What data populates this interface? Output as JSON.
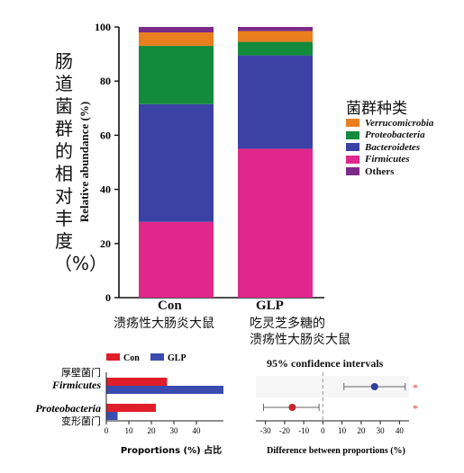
{
  "chart_data": [
    {
      "type": "bar",
      "stacked": true,
      "vertical_title": "肠道菌群的相对丰度（%）",
      "ylabel": "Relative abundance (%)",
      "ylim": [
        0,
        100
      ],
      "yticks": [
        "0",
        "20",
        "40",
        "60",
        "80",
        "100"
      ],
      "categories": [
        "Con",
        "GLP"
      ],
      "category_subtitles": [
        "溃疡性大肠炎大鼠",
        "吃灵芝多糖的\n溃疡性大肠炎大鼠"
      ],
      "legend_title": "菌群种类",
      "legend_position": "right",
      "series": [
        {
          "name": "Firmicutes",
          "color": "#e0288c",
          "values": [
            28,
            55
          ]
        },
        {
          "name": "Bacteroidetes",
          "color": "#3c41a6",
          "values": [
            43.5,
            34.5
          ]
        },
        {
          "name": "Proteobacteria",
          "color": "#138a3c",
          "values": [
            21.5,
            5
          ]
        },
        {
          "name": "Verrucomicrobia",
          "color": "#ea7f20",
          "values": [
            5,
            4
          ]
        },
        {
          "name": "Others",
          "color": "#7b2a89",
          "values": [
            2,
            1.5
          ]
        }
      ],
      "legend_order": [
        "Verrucomicrobia",
        "Proteobacteria",
        "Bacteroidetes",
        "Firmicutes",
        "Others"
      ]
    },
    {
      "type": "bar",
      "orientation": "horizontal",
      "categories": [
        "Firmicutes",
        "Proteobacteria"
      ],
      "category_notes": [
        "厚壁菌门",
        "变形菌门"
      ],
      "series": [
        {
          "name": "Con",
          "color": "#e01e2a",
          "values": [
            27,
            22
          ]
        },
        {
          "name": "GLP",
          "color": "#3a4cb0",
          "values": [
            52,
            5
          ]
        }
      ],
      "xlabel": "Proportions (%) 占比",
      "xticks": [
        "0",
        "10",
        "20",
        "30",
        "40"
      ],
      "xlim": [
        0,
        52
      ],
      "legend_position": "top"
    },
    {
      "type": "scatter",
      "title": "95% confidence intervals",
      "categories": [
        "Firmicutes",
        "Proteobacteria"
      ],
      "points": [
        {
          "value": 27,
          "ci": [
            11,
            43
          ],
          "color": "#2f3f9a",
          "sig": "*"
        },
        {
          "value": -16,
          "ci": [
            -31,
            -2
          ],
          "color": "#c1272d",
          "sig": "*"
        }
      ],
      "xlabel": "Difference between proportions (%)",
      "xticks": [
        "-30",
        "-20",
        "-10",
        "0",
        "10",
        "20",
        "30",
        "40"
      ],
      "xlim": [
        -35,
        45
      ]
    }
  ]
}
